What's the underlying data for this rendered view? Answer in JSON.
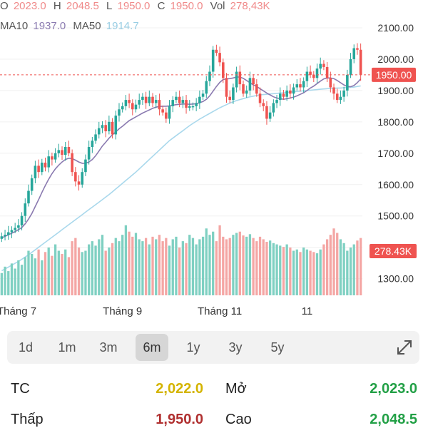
{
  "ohlc": {
    "o_label": "O",
    "o_value": "2023.0",
    "h_label": "H",
    "h_value": "2048.5",
    "l_label": "L",
    "l_value": "1950.0",
    "c_label": "C",
    "c_value": "1950.0",
    "vol_label": "Vol",
    "vol_value": "278,43K"
  },
  "ma": {
    "ma10_label": "MA10",
    "ma10_value": "1937.0",
    "ma50_label": "MA50",
    "ma50_value": "1914.7"
  },
  "colors": {
    "up": "#26a69a",
    "down": "#ef5350",
    "up_volume": "#7fd0c2",
    "down_volume": "#f4a6a4",
    "ma10": "#8a7ab0",
    "ma50": "#a9d8ec",
    "price_tag": "#ef5350"
  },
  "chart_data": {
    "type": "candlestick",
    "y_axis": {
      "ticks": [
        2100,
        2000,
        1900,
        1800,
        1700,
        1600,
        1500,
        1400,
        1300
      ],
      "labels": [
        "2100.00",
        "2000.00",
        "1900.00",
        "1800.00",
        "1700.00",
        "1600.00",
        "1500.00",
        "1400.00",
        "1300.00"
      ],
      "range": [
        1265,
        2125
      ]
    },
    "x_axis": {
      "labels": [
        "Tháng 7",
        "Tháng 9",
        "Tháng 11",
        "11"
      ]
    },
    "current_price": {
      "value": 1950.0,
      "label": "1950.00"
    },
    "current_volume": {
      "label": "278.43K"
    },
    "closes": [
      1435,
      1440,
      1448,
      1455,
      1462,
      1470,
      1500,
      1540,
      1580,
      1620,
      1660,
      1640,
      1670,
      1655,
      1690,
      1680,
      1700,
      1710,
      1695,
      1720,
      1700,
      1640,
      1610,
      1600,
      1640,
      1680,
      1720,
      1740,
      1760,
      1780,
      1790,
      1770,
      1800,
      1760,
      1820,
      1840,
      1850,
      1870,
      1860,
      1840,
      1855,
      1870,
      1880,
      1860,
      1880,
      1860,
      1870,
      1840,
      1830,
      1810,
      1850,
      1870,
      1880,
      1860,
      1870,
      1845,
      1850,
      1850,
      1860,
      1880,
      1890,
      1930,
      1960,
      2030,
      2020,
      1990,
      1940,
      1880,
      1870,
      1910,
      1960,
      1920,
      1890,
      1900,
      1940,
      1920,
      1890,
      1860,
      1850,
      1810,
      1830,
      1860,
      1870,
      1890,
      1880,
      1900,
      1890,
      1910,
      1920,
      1910,
      1930,
      1960,
      1950,
      1940,
      1970,
      1985,
      1975,
      1940,
      1910,
      1890,
      1870,
      1880,
      1900,
      1950,
      2000,
      2035,
      2030,
      1950
    ],
    "ma10": [
      1430,
      1435,
      1440,
      1445,
      1450,
      1456,
      1463,
      1475,
      1490,
      1508,
      1530,
      1552,
      1575,
      1597,
      1617,
      1635,
      1650,
      1662,
      1672,
      1680,
      1684,
      1683,
      1678,
      1672,
      1668,
      1668,
      1672,
      1680,
      1692,
      1707,
      1723,
      1735,
      1748,
      1759,
      1768,
      1778,
      1786,
      1795,
      1804,
      1810,
      1816,
      1822,
      1828,
      1833,
      1838,
      1843,
      1847,
      1849,
      1850,
      1850,
      1851,
      1853,
      1855,
      1856,
      1857,
      1857,
      1856,
      1857,
      1858,
      1861,
      1865,
      1872,
      1883,
      1898,
      1913,
      1926,
      1935,
      1937,
      1938,
      1940,
      1943,
      1943,
      1939,
      1932,
      1925,
      1918,
      1913,
      1906,
      1899,
      1892,
      1886,
      1880,
      1876,
      1874,
      1872,
      1874,
      1876,
      1879,
      1883,
      1888,
      1893,
      1900,
      1908,
      1914,
      1922,
      1930,
      1937,
      1940,
      1940,
      1938,
      1932,
      1925,
      1918,
      1913,
      1912,
      1916,
      1925,
      1937
    ],
    "ma50": [
      1325,
      1331,
      1337,
      1343,
      1349,
      1355,
      1362,
      1369,
      1376,
      1384,
      1392,
      1400,
      1408,
      1416,
      1424,
      1432,
      1440,
      1448,
      1456,
      1464,
      1472,
      1480,
      1488,
      1496,
      1504,
      1512,
      1520,
      1528,
      1536,
      1544,
      1552,
      1560,
      1568,
      1577,
      1586,
      1595,
      1604,
      1613,
      1622,
      1631,
      1640,
      1650,
      1660,
      1670,
      1680,
      1690,
      1700,
      1710,
      1720,
      1730,
      1740,
      1748,
      1756,
      1764,
      1772,
      1780,
      1788,
      1795,
      1802,
      1809,
      1815,
      1821,
      1827,
      1833,
      1839,
      1845,
      1850,
      1855,
      1860,
      1864,
      1868,
      1871,
      1874,
      1877,
      1880,
      1882,
      1884,
      1886,
      1887,
      1888,
      1889,
      1890,
      1891,
      1892,
      1893,
      1894,
      1895,
      1896,
      1897,
      1898,
      1899,
      1900,
      1901,
      1902,
      1903,
      1904,
      1905,
      1906,
      1907,
      1907,
      1908,
      1908,
      1909,
      1909,
      1910,
      1911,
      1913,
      1914.7
    ],
    "volumes": [
      35,
      45,
      38,
      50,
      42,
      55,
      48,
      60,
      70,
      65,
      58,
      72,
      55,
      68,
      75,
      62,
      80,
      70,
      65,
      72,
      60,
      85,
      90,
      75,
      68,
      70,
      80,
      85,
      78,
      88,
      95,
      70,
      75,
      82,
      90,
      85,
      95,
      110,
      100,
      92,
      98,
      88,
      85,
      90,
      80,
      92,
      88,
      95,
      85,
      90,
      78,
      88,
      92,
      75,
      85,
      82,
      95,
      90,
      80,
      88,
      92,
      105,
      95,
      100,
      85,
      110,
      92,
      88,
      90,
      95,
      98,
      100,
      94,
      92,
      96,
      90,
      85,
      92,
      88,
      84,
      86,
      82,
      80,
      78,
      76,
      80,
      75,
      70,
      72,
      68,
      75,
      72,
      70,
      68,
      66,
      72,
      80,
      88,
      95,
      105,
      98,
      88,
      82,
      70,
      75,
      80,
      86,
      90
    ],
    "volume_scale_max": 140
  },
  "timeframes": {
    "items": [
      "1d",
      "1m",
      "3m",
      "6m",
      "1y",
      "3y",
      "5y"
    ],
    "active": "6m"
  },
  "stats": {
    "tc_label": "TC",
    "tc_value": "2,022.0",
    "open_label": "Mở",
    "open_value": "2,023.0",
    "low_label": "Thấp",
    "low_value": "1,950.0",
    "high_label": "Cao",
    "high_value": "2,048.5",
    "tc_color": "#d4b400",
    "open_color": "#22a046",
    "low_color": "#b03030",
    "high_color": "#22a046"
  }
}
